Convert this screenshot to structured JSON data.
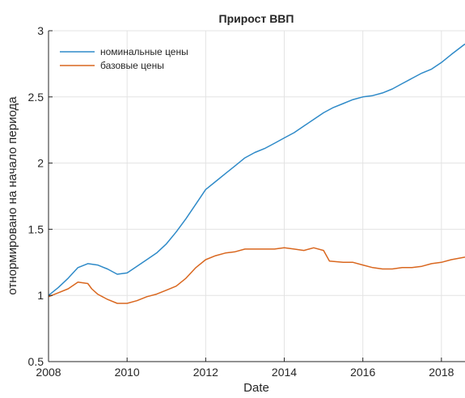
{
  "chart_data": {
    "type": "line",
    "title": "Прирост ВВП",
    "xlabel": "Date",
    "ylabel": "отнормировано на начало периода",
    "xlim": [
      2008,
      2018.6
    ],
    "ylim": [
      0.5,
      3
    ],
    "xticks": [
      2008,
      2010,
      2012,
      2014,
      2016,
      2018
    ],
    "yticks": [
      0.5,
      1,
      1.5,
      2,
      2.5,
      3
    ],
    "xtick_labels": [
      "2008",
      "2010",
      "2012",
      "2014",
      "2016",
      "2018"
    ],
    "ytick_labels": [
      "0.5",
      "1",
      "1.5",
      "2",
      "2.5",
      "3"
    ],
    "grid": true,
    "legend_position": "top-left",
    "series": [
      {
        "name": "номинальные цены",
        "color": "#2e8ac8",
        "points": [
          [
            2008.0,
            1.0
          ],
          [
            2008.25,
            1.06
          ],
          [
            2008.5,
            1.13
          ],
          [
            2008.75,
            1.21
          ],
          [
            2009.0,
            1.24
          ],
          [
            2009.25,
            1.23
          ],
          [
            2009.5,
            1.2
          ],
          [
            2009.75,
            1.16
          ],
          [
            2010.0,
            1.17
          ],
          [
            2010.25,
            1.22
          ],
          [
            2010.5,
            1.27
          ],
          [
            2010.75,
            1.32
          ],
          [
            2011.0,
            1.39
          ],
          [
            2011.25,
            1.48
          ],
          [
            2011.5,
            1.58
          ],
          [
            2011.75,
            1.69
          ],
          [
            2012.0,
            1.8
          ],
          [
            2012.25,
            1.86
          ],
          [
            2012.5,
            1.92
          ],
          [
            2012.75,
            1.98
          ],
          [
            2013.0,
            2.04
          ],
          [
            2013.25,
            2.08
          ],
          [
            2013.5,
            2.11
          ],
          [
            2013.75,
            2.15
          ],
          [
            2014.0,
            2.19
          ],
          [
            2014.25,
            2.23
          ],
          [
            2014.5,
            2.28
          ],
          [
            2014.75,
            2.33
          ],
          [
            2015.0,
            2.38
          ],
          [
            2015.25,
            2.42
          ],
          [
            2015.5,
            2.45
          ],
          [
            2015.75,
            2.48
          ],
          [
            2016.0,
            2.5
          ],
          [
            2016.25,
            2.51
          ],
          [
            2016.5,
            2.53
          ],
          [
            2016.75,
            2.56
          ],
          [
            2017.0,
            2.6
          ],
          [
            2017.25,
            2.64
          ],
          [
            2017.5,
            2.68
          ],
          [
            2017.75,
            2.71
          ],
          [
            2018.0,
            2.76
          ],
          [
            2018.25,
            2.82
          ],
          [
            2018.6,
            2.9
          ]
        ]
      },
      {
        "name": "базовые цены",
        "color": "#d9671f",
        "points": [
          [
            2008.0,
            0.99
          ],
          [
            2008.25,
            1.02
          ],
          [
            2008.5,
            1.05
          ],
          [
            2008.75,
            1.1
          ],
          [
            2009.0,
            1.09
          ],
          [
            2009.1,
            1.05
          ],
          [
            2009.25,
            1.01
          ],
          [
            2009.5,
            0.97
          ],
          [
            2009.75,
            0.94
          ],
          [
            2010.0,
            0.94
          ],
          [
            2010.25,
            0.96
          ],
          [
            2010.5,
            0.99
          ],
          [
            2010.75,
            1.01
          ],
          [
            2011.0,
            1.04
          ],
          [
            2011.25,
            1.07
          ],
          [
            2011.5,
            1.13
          ],
          [
            2011.75,
            1.21
          ],
          [
            2012.0,
            1.27
          ],
          [
            2012.25,
            1.3
          ],
          [
            2012.5,
            1.32
          ],
          [
            2012.75,
            1.33
          ],
          [
            2013.0,
            1.35
          ],
          [
            2013.25,
            1.35
          ],
          [
            2013.5,
            1.35
          ],
          [
            2013.75,
            1.35
          ],
          [
            2014.0,
            1.36
          ],
          [
            2014.25,
            1.35
          ],
          [
            2014.5,
            1.34
          ],
          [
            2014.75,
            1.36
          ],
          [
            2015.0,
            1.34
          ],
          [
            2015.15,
            1.26
          ],
          [
            2015.5,
            1.25
          ],
          [
            2015.75,
            1.25
          ],
          [
            2016.0,
            1.23
          ],
          [
            2016.25,
            1.21
          ],
          [
            2016.5,
            1.2
          ],
          [
            2016.75,
            1.2
          ],
          [
            2017.0,
            1.21
          ],
          [
            2017.25,
            1.21
          ],
          [
            2017.5,
            1.22
          ],
          [
            2017.75,
            1.24
          ],
          [
            2018.0,
            1.25
          ],
          [
            2018.25,
            1.27
          ],
          [
            2018.6,
            1.29
          ]
        ]
      }
    ]
  }
}
